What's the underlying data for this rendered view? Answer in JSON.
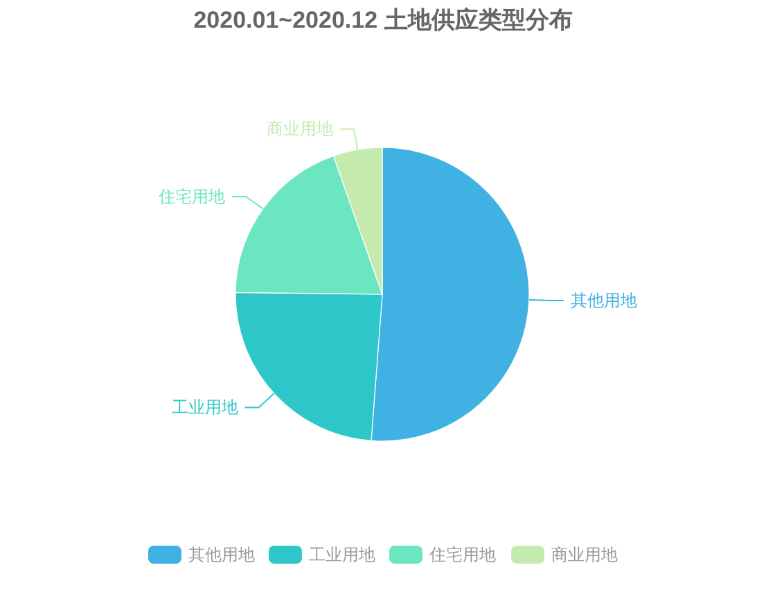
{
  "chart_data": {
    "type": "pie",
    "title": "2020.01~2020.12 土地供应类型分布",
    "categories": [
      "其他用地",
      "工业用地",
      "住宅用地",
      "商业用地"
    ],
    "values": [
      51.2,
      24.0,
      19.4,
      5.4
    ],
    "colors": [
      "#3fb1e3",
      "#2ec7c9",
      "#6be6c1",
      "#c4ebad"
    ],
    "legend": "bottom"
  }
}
